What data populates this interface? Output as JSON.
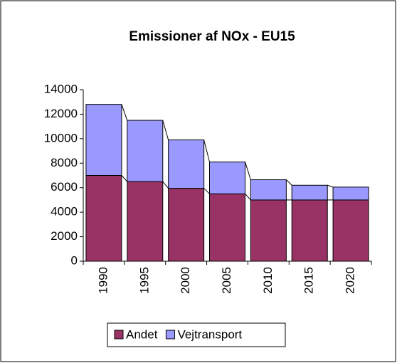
{
  "chart_data": {
    "type": "stacked_bar",
    "title": "Emissioner af NOx - EU15",
    "categories": [
      "1990",
      "1995",
      "2000",
      "2005",
      "2010",
      "2015",
      "2020"
    ],
    "series": [
      {
        "name": "Andet",
        "color": "#993366",
        "values": [
          7000,
          6500,
          5950,
          5500,
          5000,
          5000,
          5000
        ]
      },
      {
        "name": "Vejtransport",
        "color": "#9999ff",
        "values": [
          5800,
          5000,
          3950,
          2600,
          1650,
          1200,
          1050
        ]
      }
    ],
    "ylim": [
      0,
      14000
    ],
    "yticks": [
      0,
      2000,
      4000,
      6000,
      8000,
      10000,
      12000,
      14000
    ],
    "legend": "bottom"
  }
}
